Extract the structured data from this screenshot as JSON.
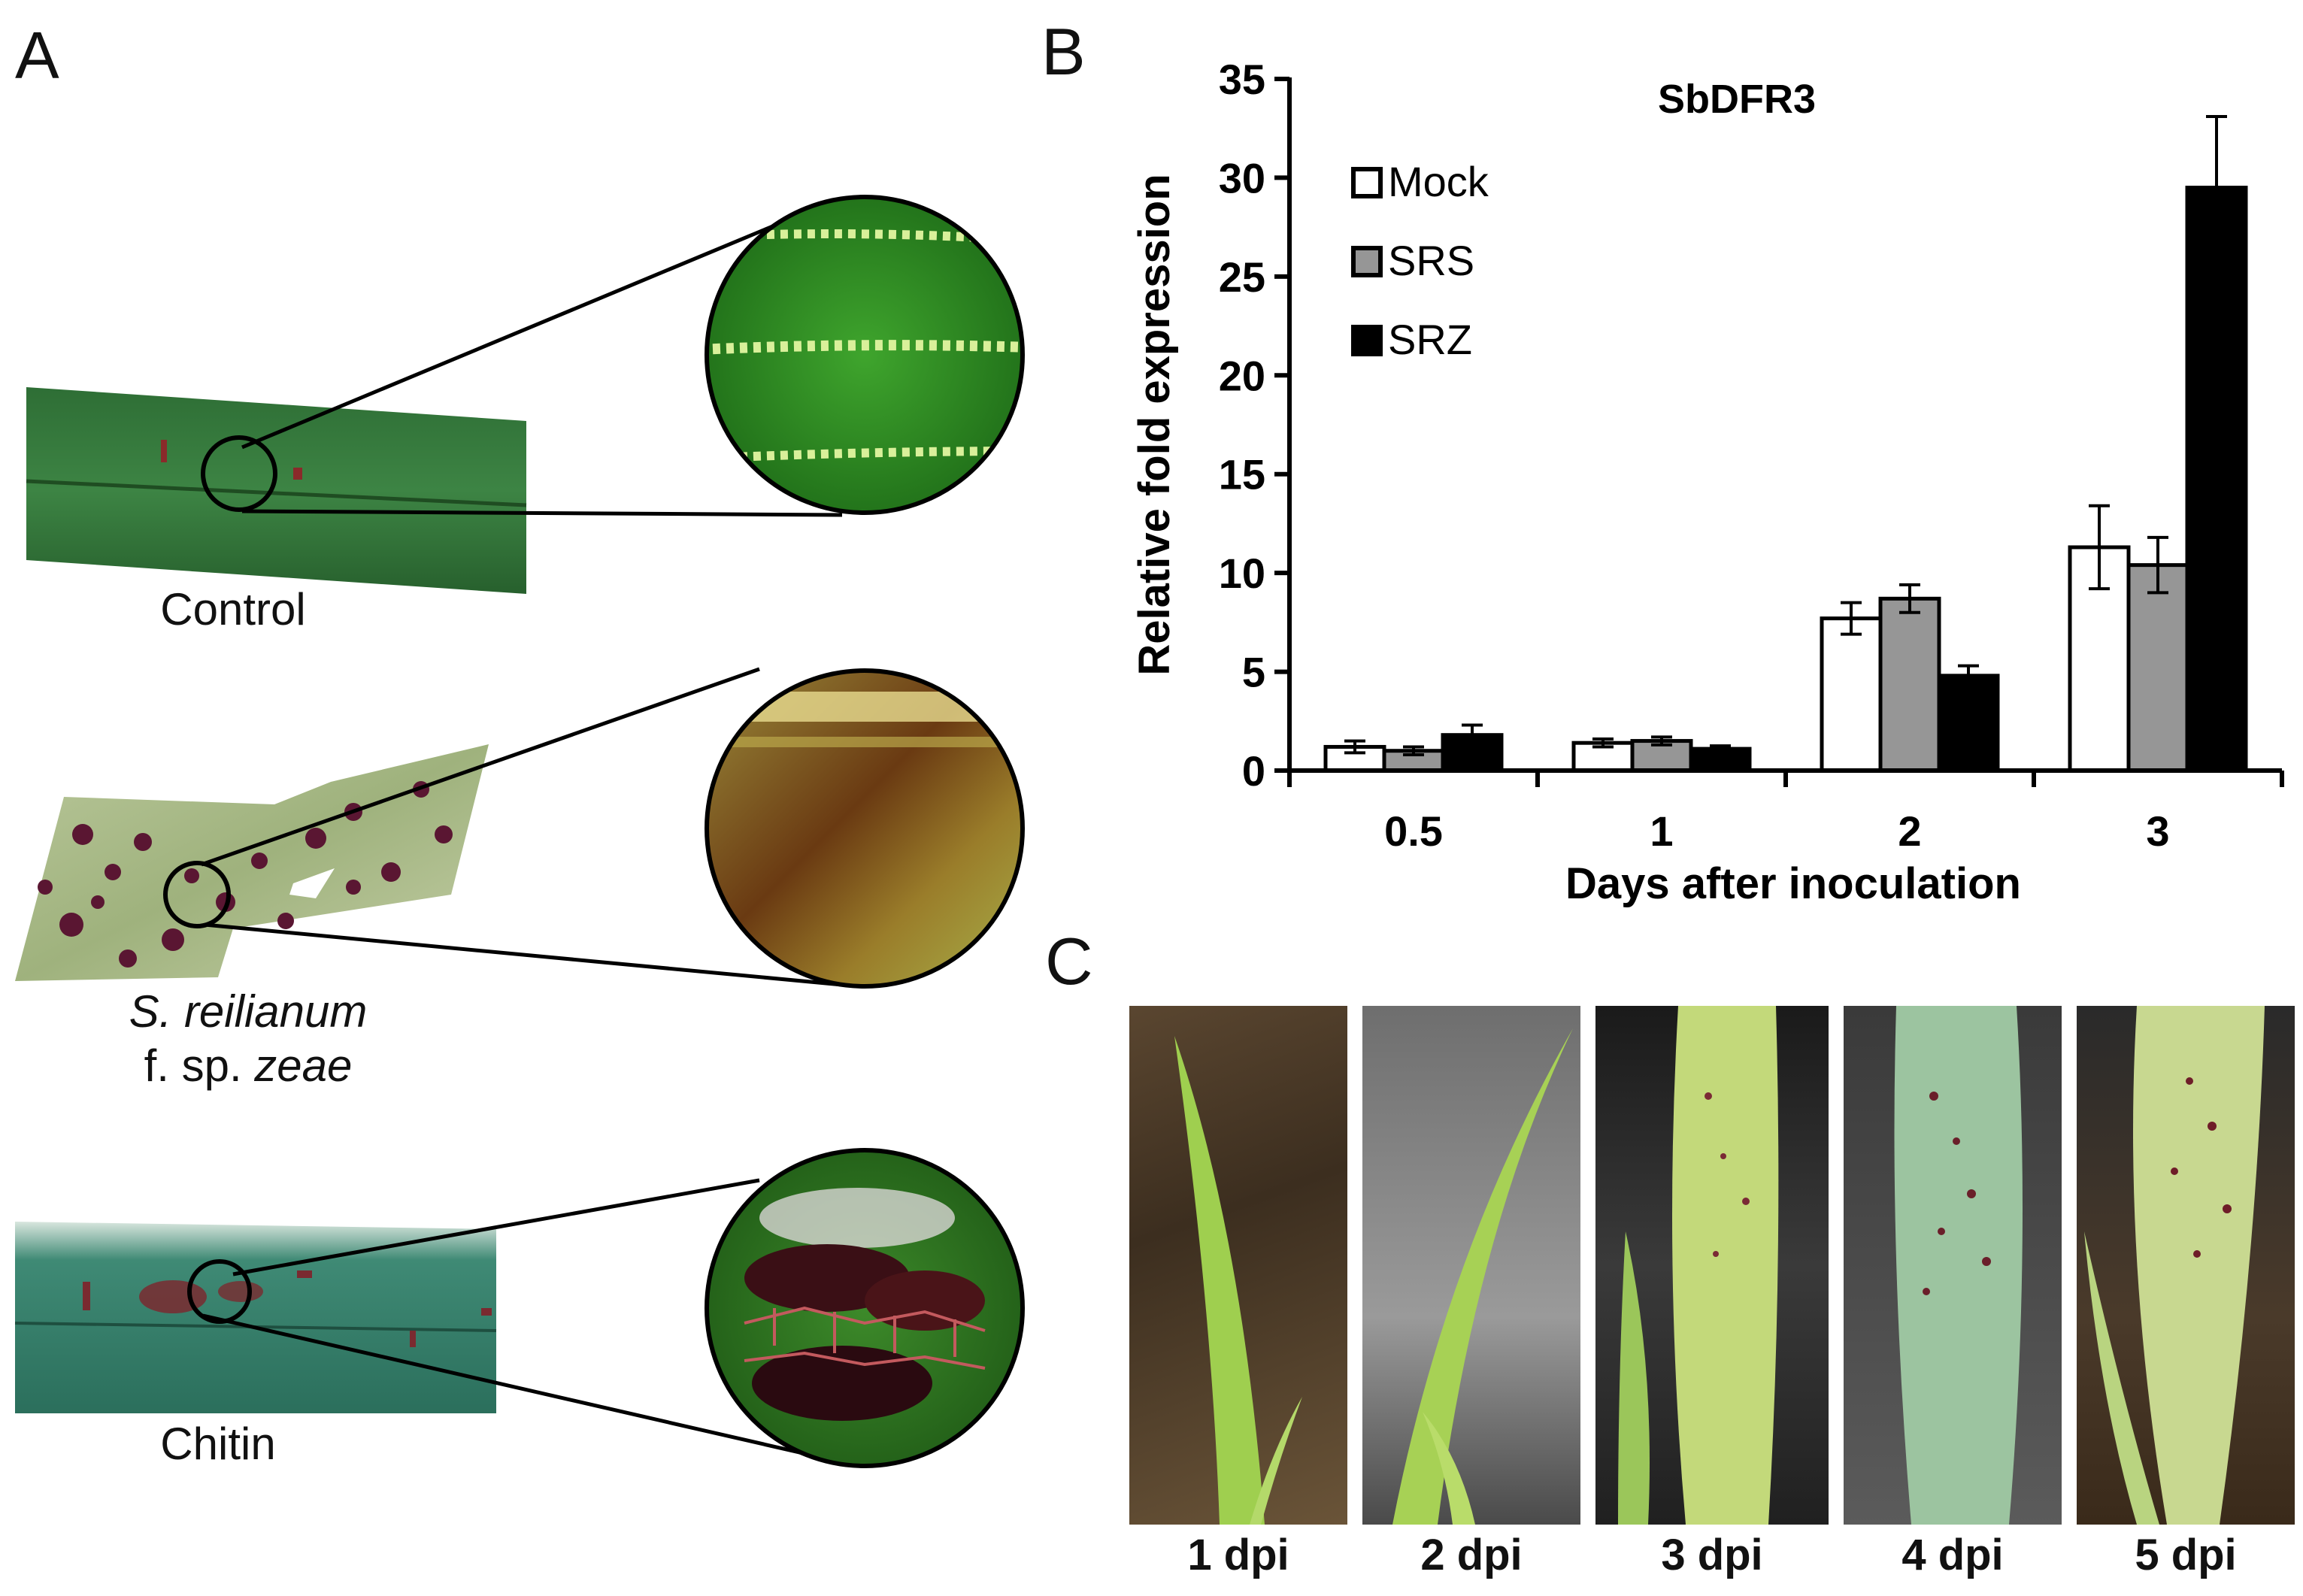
{
  "panels": {
    "a": "A",
    "b": "B",
    "c": "C"
  },
  "panel_a": {
    "captions": {
      "control": "Control",
      "srz_line1": "S. reilianum",
      "srz_line2_prefix": "f. sp. ",
      "srz_line2_italic": "zeae",
      "chitin": "Chitin"
    }
  },
  "panel_c": {
    "labels": [
      "1 dpi",
      "2 dpi",
      "3 dpi",
      "4 dpi",
      "5 dpi"
    ]
  },
  "colors": {
    "mock": "#ffffff",
    "srs": "#969696",
    "srz": "#000000",
    "leaf_green": "#2f6b2e",
    "lesion": "#6b1f2a"
  },
  "chart_data": {
    "type": "bar",
    "title": "SbDFR3",
    "xlabel": "Days after inoculation",
    "ylabel": "Relative fold expression",
    "categories": [
      "0.5",
      "1",
      "2",
      "3"
    ],
    "ylim": [
      0,
      35
    ],
    "yticks": [
      0,
      5,
      10,
      15,
      20,
      25,
      30,
      35
    ],
    "legend_position": "top-left",
    "series": [
      {
        "name": "Mock",
        "values": [
          1.2,
          1.4,
          7.7,
          11.3
        ],
        "errors": [
          0.3,
          0.2,
          0.8,
          2.1
        ]
      },
      {
        "name": "SRS",
        "values": [
          1.0,
          1.5,
          8.7,
          10.4
        ],
        "errors": [
          0.2,
          0.2,
          0.7,
          1.4
        ]
      },
      {
        "name": "SRZ",
        "values": [
          1.8,
          1.1,
          4.8,
          29.5
        ],
        "errors": [
          0.5,
          0.15,
          0.5,
          3.6
        ]
      }
    ]
  }
}
